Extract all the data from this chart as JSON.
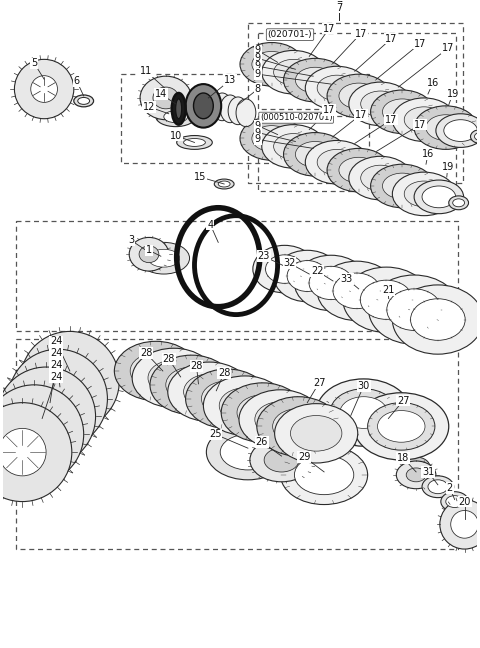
{
  "bg_color": "#ffffff",
  "line_color": "#2a2a2a",
  "figsize": [
    4.8,
    6.48
  ],
  "dpi": 100
}
